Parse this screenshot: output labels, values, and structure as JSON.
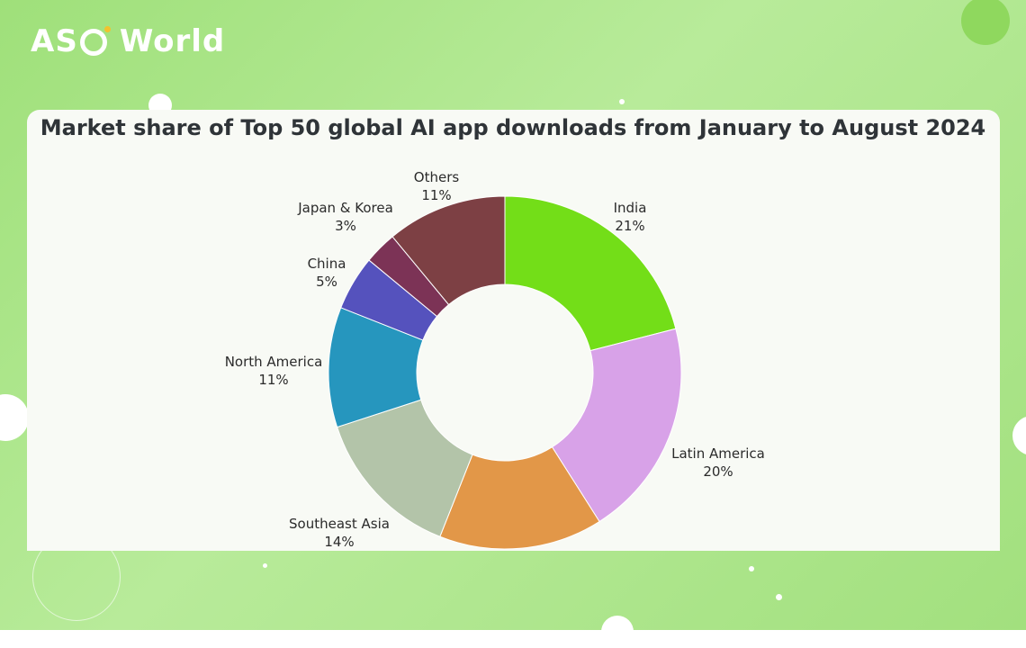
{
  "brand": {
    "logo_left": "AS",
    "logo_right": "World"
  },
  "chart_data": {
    "type": "pie",
    "variant": "donut",
    "title": "Market share of Top 50 global AI app downloads from January to August 2024",
    "slices": [
      {
        "label": "India",
        "percent_label": "21%",
        "value": 21,
        "color": "#73de18"
      },
      {
        "label": "Latin America",
        "percent_label": "20%",
        "value": 20,
        "color": "#d8a2e8"
      },
      {
        "label": "",
        "percent_label": "",
        "value": 15,
        "color": "#e29748"
      },
      {
        "label": "Southeast Asia",
        "percent_label": "14%",
        "value": 14,
        "color": "#b3c4a9"
      },
      {
        "label": "North America",
        "percent_label": "11%",
        "value": 11,
        "color": "#2696be"
      },
      {
        "label": "China",
        "percent_label": "5%",
        "value": 5,
        "color": "#5552bd"
      },
      {
        "label": "Japan & Korea",
        "percent_label": "3%",
        "value": 3,
        "color": "#7c3356"
      },
      {
        "label": "Others",
        "percent_label": "11%",
        "value": 11,
        "color": "#7d4044"
      }
    ]
  }
}
